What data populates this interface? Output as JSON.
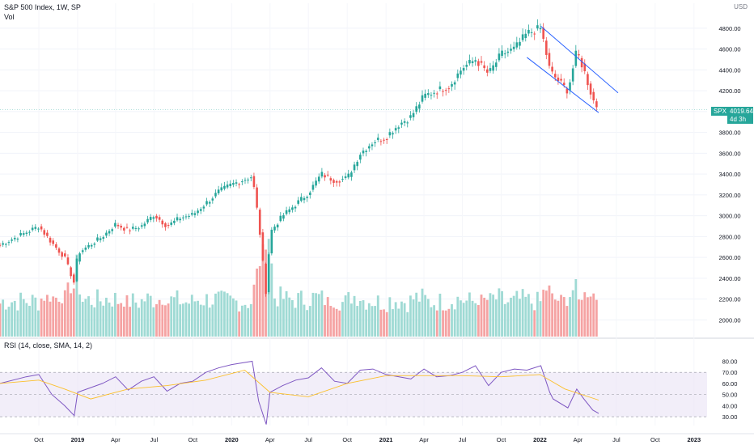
{
  "header": {
    "title": "S&P 500 Index, 1W, SP",
    "vol_label": "Vol",
    "currency": "USD",
    "rsi_label": "RSI (14, close, SMA, 14, 2)"
  },
  "price_marker": {
    "symbol": "SPX",
    "price": "4019.64",
    "countdown": "4d 3h"
  },
  "colors": {
    "up": "#26a69a",
    "down": "#ef5350",
    "vol_up": "#9fdad4",
    "vol_down": "#f5a3a3",
    "channel": "#2962ff",
    "rsi": "#7e57c2",
    "rsi_ma": "#fbc02d",
    "rsi_band": "#ede7f6"
  },
  "chart_data": [
    {
      "type": "candlestick",
      "title": "S&P 500 Index, 1W, SP",
      "x_ticks": [
        "Oct",
        "2019",
        "Apr",
        "Jul",
        "Oct",
        "2020",
        "Apr",
        "Jul",
        "Oct",
        "2021",
        "Apr",
        "Jul",
        "Oct",
        "2022",
        "Apr",
        "Jul",
        "Oct",
        "2023"
      ],
      "y_ticks": [
        "2000.00",
        "2200.00",
        "2400.00",
        "2600.00",
        "2800.00",
        "3000.00",
        "3200.00",
        "3400.00",
        "3600.00",
        "3800.00",
        "4000.00",
        "4200.00",
        "4400.00",
        "4600.00",
        "4800.00"
      ],
      "ylim": [
        1840,
        5040
      ],
      "last_price": 4019.64,
      "x_range": [
        "2018-07",
        "2023-02"
      ],
      "close_series": {
        "dates": [
          "2018-07",
          "2018-09",
          "2018-10",
          "2018-11",
          "2018-12",
          "2018-12-24",
          "2019-01",
          "2019-03",
          "2019-04",
          "2019-05",
          "2019-06",
          "2019-07",
          "2019-08",
          "2019-09",
          "2019-10",
          "2019-11",
          "2019-12",
          "2020-01",
          "2020-02-19",
          "2020-03-05",
          "2020-03-23",
          "2020-04",
          "2020-05",
          "2020-06",
          "2020-07",
          "2020-08",
          "2020-09",
          "2020-10",
          "2020-11",
          "2020-12",
          "2021-01",
          "2021-02",
          "2021-03",
          "2021-04",
          "2021-05",
          "2021-06",
          "2021-07",
          "2021-08",
          "2021-09",
          "2021-10",
          "2021-11",
          "2021-12",
          "2022-01-03",
          "2022-01-24",
          "2022-02",
          "2022-03-08",
          "2022-03-29",
          "2022-04-15",
          "2022-05-06",
          "2022-05-20"
        ],
        "close": [
          2720,
          2840,
          2900,
          2740,
          2600,
          2350,
          2640,
          2800,
          2920,
          2860,
          2900,
          3010,
          2900,
          2980,
          3010,
          3120,
          3230,
          3300,
          3380,
          2950,
          2230,
          2840,
          3000,
          3110,
          3220,
          3400,
          3340,
          3360,
          3600,
          3710,
          3760,
          3880,
          3950,
          4150,
          4200,
          4250,
          4420,
          4500,
          4360,
          4550,
          4600,
          4750,
          4800,
          4400,
          4350,
          4200,
          4580,
          4400,
          4120,
          4019.64
        ]
      },
      "channel": {
        "upper": {
          "from": [
            "2022-01-03",
            4820
          ],
          "to": [
            "2022-07-05",
            4180
          ]
        },
        "lower": {
          "from": [
            "2021-12-01",
            4520
          ],
          "to": [
            "2022-05-20",
            3990
          ]
        }
      }
    },
    {
      "type": "line",
      "title": "RSI (14, close, SMA, 14, 2)",
      "y_ticks": [
        "30.00",
        "40.00",
        "50.00",
        "60.00",
        "70.00",
        "80.00"
      ],
      "ylim": [
        22,
        84
      ],
      "bands": [
        30,
        70
      ],
      "middle": 50,
      "series": [
        {
          "name": "RSI",
          "dates": [
            "2018-07",
            "2018-09",
            "2018-10",
            "2018-11",
            "2018-12",
            "2018-12-24",
            "2019-01",
            "2019-03",
            "2019-04",
            "2019-05",
            "2019-06",
            "2019-07",
            "2019-08",
            "2019-09",
            "2019-10",
            "2019-11",
            "2019-12",
            "2020-01",
            "2020-02-19",
            "2020-03-05",
            "2020-03-23",
            "2020-04",
            "2020-05",
            "2020-06",
            "2020-07",
            "2020-08",
            "2020-09",
            "2020-10",
            "2020-11",
            "2020-12",
            "2021-01",
            "2021-02",
            "2021-03",
            "2021-04",
            "2021-05",
            "2021-06",
            "2021-07",
            "2021-08",
            "2021-09",
            "2021-10",
            "2021-11",
            "2021-12",
            "2022-01-03",
            "2022-01-24",
            "2022-02",
            "2022-03-08",
            "2022-03-29",
            "2022-04-15",
            "2022-05-06",
            "2022-05-20"
          ],
          "values": [
            60,
            66,
            68,
            50,
            40,
            31,
            52,
            60,
            66,
            54,
            62,
            66,
            53,
            60,
            62,
            70,
            74,
            77,
            80,
            44,
            23,
            52,
            58,
            63,
            65,
            74,
            62,
            60,
            72,
            73,
            68,
            66,
            64,
            73,
            66,
            67,
            70,
            76,
            58,
            70,
            73,
            72,
            76,
            52,
            46,
            38,
            55,
            46,
            36,
            33
          ]
        },
        {
          "name": "SMA",
          "dates": [
            "2018-07",
            "2018-10",
            "2018-12",
            "2019-02",
            "2019-05",
            "2019-08",
            "2019-11",
            "2020-02",
            "2020-04",
            "2020-07",
            "2020-10",
            "2021-01",
            "2021-04",
            "2021-07",
            "2021-10",
            "2022-01",
            "2022-03",
            "2022-05-20"
          ],
          "values": [
            60,
            63,
            55,
            46,
            55,
            58,
            63,
            72,
            52,
            48,
            60,
            67,
            67,
            67,
            66,
            68,
            55,
            45
          ]
        }
      ]
    }
  ]
}
